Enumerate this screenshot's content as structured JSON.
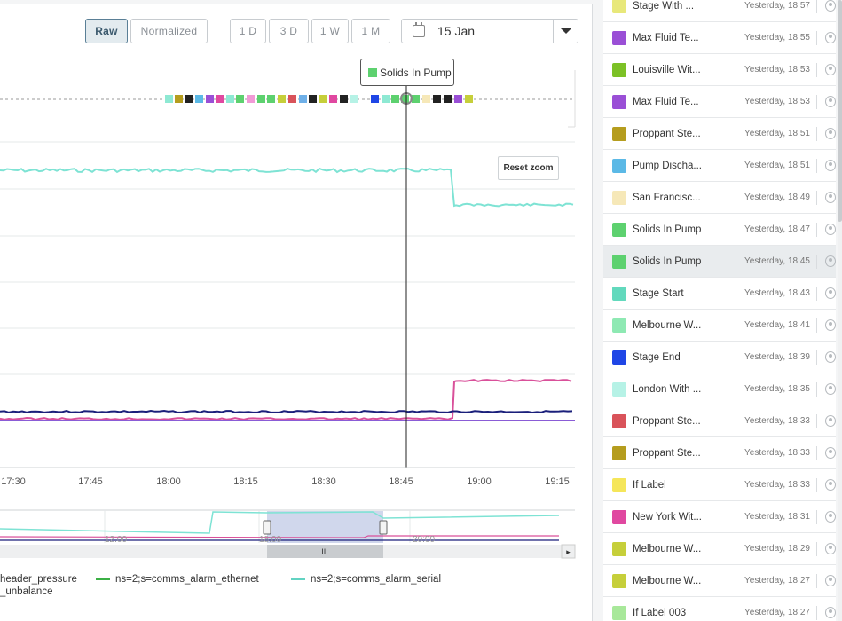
{
  "toolbar": {
    "raw_label": "Raw",
    "normalized_label": "Normalized",
    "range_buttons": [
      "1 D",
      "3 D",
      "1 W",
      "1 M"
    ],
    "date_value": "15 Jan"
  },
  "chart": {
    "reset_zoom_label": "Reset zoom",
    "tooltip_label": "Solids In Pump",
    "x_ticks": [
      "17:30",
      "17:45",
      "18:00",
      "18:15",
      "18:30",
      "18:45",
      "19:00",
      "19:15"
    ],
    "navigator_ticks": [
      "12:00",
      "18:00",
      "20:00"
    ],
    "navigator_handle_glyph": "III",
    "navigator_arrow_glyph": "▸",
    "colors": {
      "teal_series": "#7ee3d4",
      "navy_series": "#1a1f7a",
      "pink_series": "#d9509a",
      "purple_series": "#8a5cd6",
      "selection": "#aab6dc",
      "crosshair": "#222222"
    },
    "annotation_markers": [
      "#8ee9d3",
      "#b59d1e",
      "#222222",
      "#5bb9e6",
      "#9a4fd6",
      "#e048a0",
      "#8ee9d3",
      "#5dd16f",
      "#f19ad6",
      "#5dd16f",
      "#5dd16f",
      "#c6cf3a",
      "#d9535a",
      "#6fb0e8",
      "#222222",
      "#c6cf3a",
      "#e048a0",
      "#222222",
      "#b6f2e6",
      "#1f46e6",
      "#8ee9d3",
      "#5dd16f",
      "#5dd16f",
      "#5dd16f",
      "#f6e8b8",
      "#222222",
      "#222222",
      "#9a4fd6",
      "#c6cf3a"
    ]
  },
  "legend": {
    "items": [
      {
        "label": "header_pressure",
        "color": ""
      },
      {
        "label": "ns=2;s=comms_alarm_ethernet",
        "color": "#3bb045"
      },
      {
        "label": "ns=2;s=comms_alarm_serial",
        "color": "#62d3c2"
      },
      {
        "label": "_unbalance",
        "color": ""
      }
    ]
  },
  "sidebar": {
    "items": [
      {
        "name": "Stage With ...",
        "time": "Yesterday, 18:57",
        "color": "#e8e87a"
      },
      {
        "name": "Max Fluid Te...",
        "time": "Yesterday, 18:55",
        "color": "#9a4fd6"
      },
      {
        "name": "Louisville Wit...",
        "time": "Yesterday, 18:53",
        "color": "#7cc126"
      },
      {
        "name": "Max Fluid Te...",
        "time": "Yesterday, 18:53",
        "color": "#9a4fd6"
      },
      {
        "name": "Proppant Ste...",
        "time": "Yesterday, 18:51",
        "color": "#b59d1e"
      },
      {
        "name": "Pump Discha...",
        "time": "Yesterday, 18:51",
        "color": "#5bb9e6"
      },
      {
        "name": "San Francisc...",
        "time": "Yesterday, 18:49",
        "color": "#f6e8b8"
      },
      {
        "name": "Solids In Pump",
        "time": "Yesterday, 18:47",
        "color": "#5dd16f"
      },
      {
        "name": "Solids In Pump",
        "time": "Yesterday, 18:45",
        "color": "#5dd16f"
      },
      {
        "name": "Stage Start",
        "time": "Yesterday, 18:43",
        "color": "#62d9bd"
      },
      {
        "name": "Melbourne W...",
        "time": "Yesterday, 18:41",
        "color": "#8ee9b3"
      },
      {
        "name": "Stage End",
        "time": "Yesterday, 18:39",
        "color": "#1f46e6"
      },
      {
        "name": "London With ...",
        "time": "Yesterday, 18:35",
        "color": "#b6f2e6"
      },
      {
        "name": "Proppant Ste...",
        "time": "Yesterday, 18:33",
        "color": "#d9535a"
      },
      {
        "name": "Proppant Ste...",
        "time": "Yesterday, 18:33",
        "color": "#b59d1e"
      },
      {
        "name": "If Label",
        "time": "Yesterday, 18:33",
        "color": "#f5e65a"
      },
      {
        "name": "New York Wit...",
        "time": "Yesterday, 18:31",
        "color": "#e048a0"
      },
      {
        "name": "Melbourne W...",
        "time": "Yesterday, 18:29",
        "color": "#c6cf3a"
      },
      {
        "name": "Melbourne W...",
        "time": "Yesterday, 18:27",
        "color": "#c6cf3a"
      },
      {
        "name": "If Label 003",
        "time": "Yesterday, 18:27",
        "color": "#a8e89a"
      }
    ],
    "selected_index": 8
  }
}
